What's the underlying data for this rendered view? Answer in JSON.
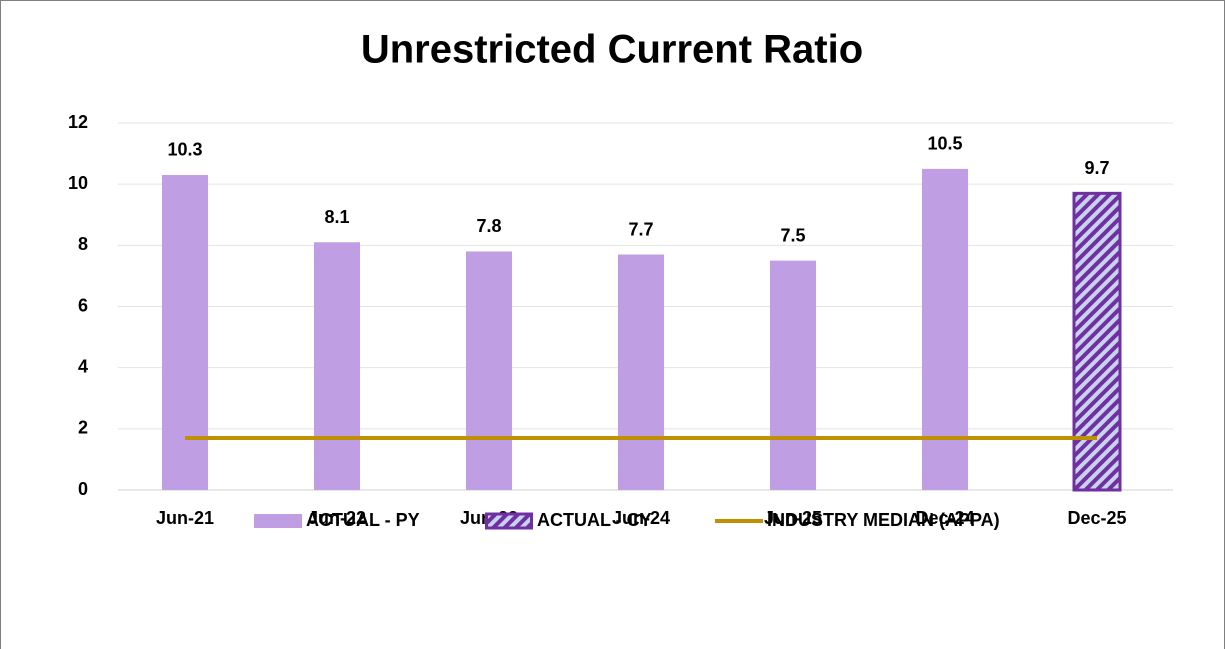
{
  "chart_data": {
    "type": "bar",
    "title": "Unrestricted Current Ratio",
    "categories": [
      "Jun-21",
      "Jun-22",
      "Jun-23",
      "Jun-24",
      "Jun-25",
      "Dec-24",
      "Dec-25"
    ],
    "series": [
      {
        "name": "ACTUAL - PY",
        "type": "bar",
        "color": "#bf9ee3",
        "values": [
          10.3,
          8.1,
          7.8,
          7.7,
          7.5,
          10.5,
          null
        ]
      },
      {
        "name": "ACTUAL - CY",
        "type": "bar",
        "color": "#7030a0",
        "pattern": "hatch",
        "values": [
          null,
          null,
          null,
          null,
          null,
          null,
          9.7
        ]
      },
      {
        "name": "INDUSTRY MEDIAN (APPA)",
        "type": "line",
        "color": "#bf9000",
        "values": [
          1.7,
          1.7,
          1.7,
          1.7,
          1.7,
          1.7,
          1.7
        ]
      }
    ],
    "ylim": [
      0,
      12
    ],
    "yticks": [
      0,
      2,
      4,
      6,
      8,
      10,
      12
    ],
    "grid": true,
    "legend": "bottom"
  }
}
